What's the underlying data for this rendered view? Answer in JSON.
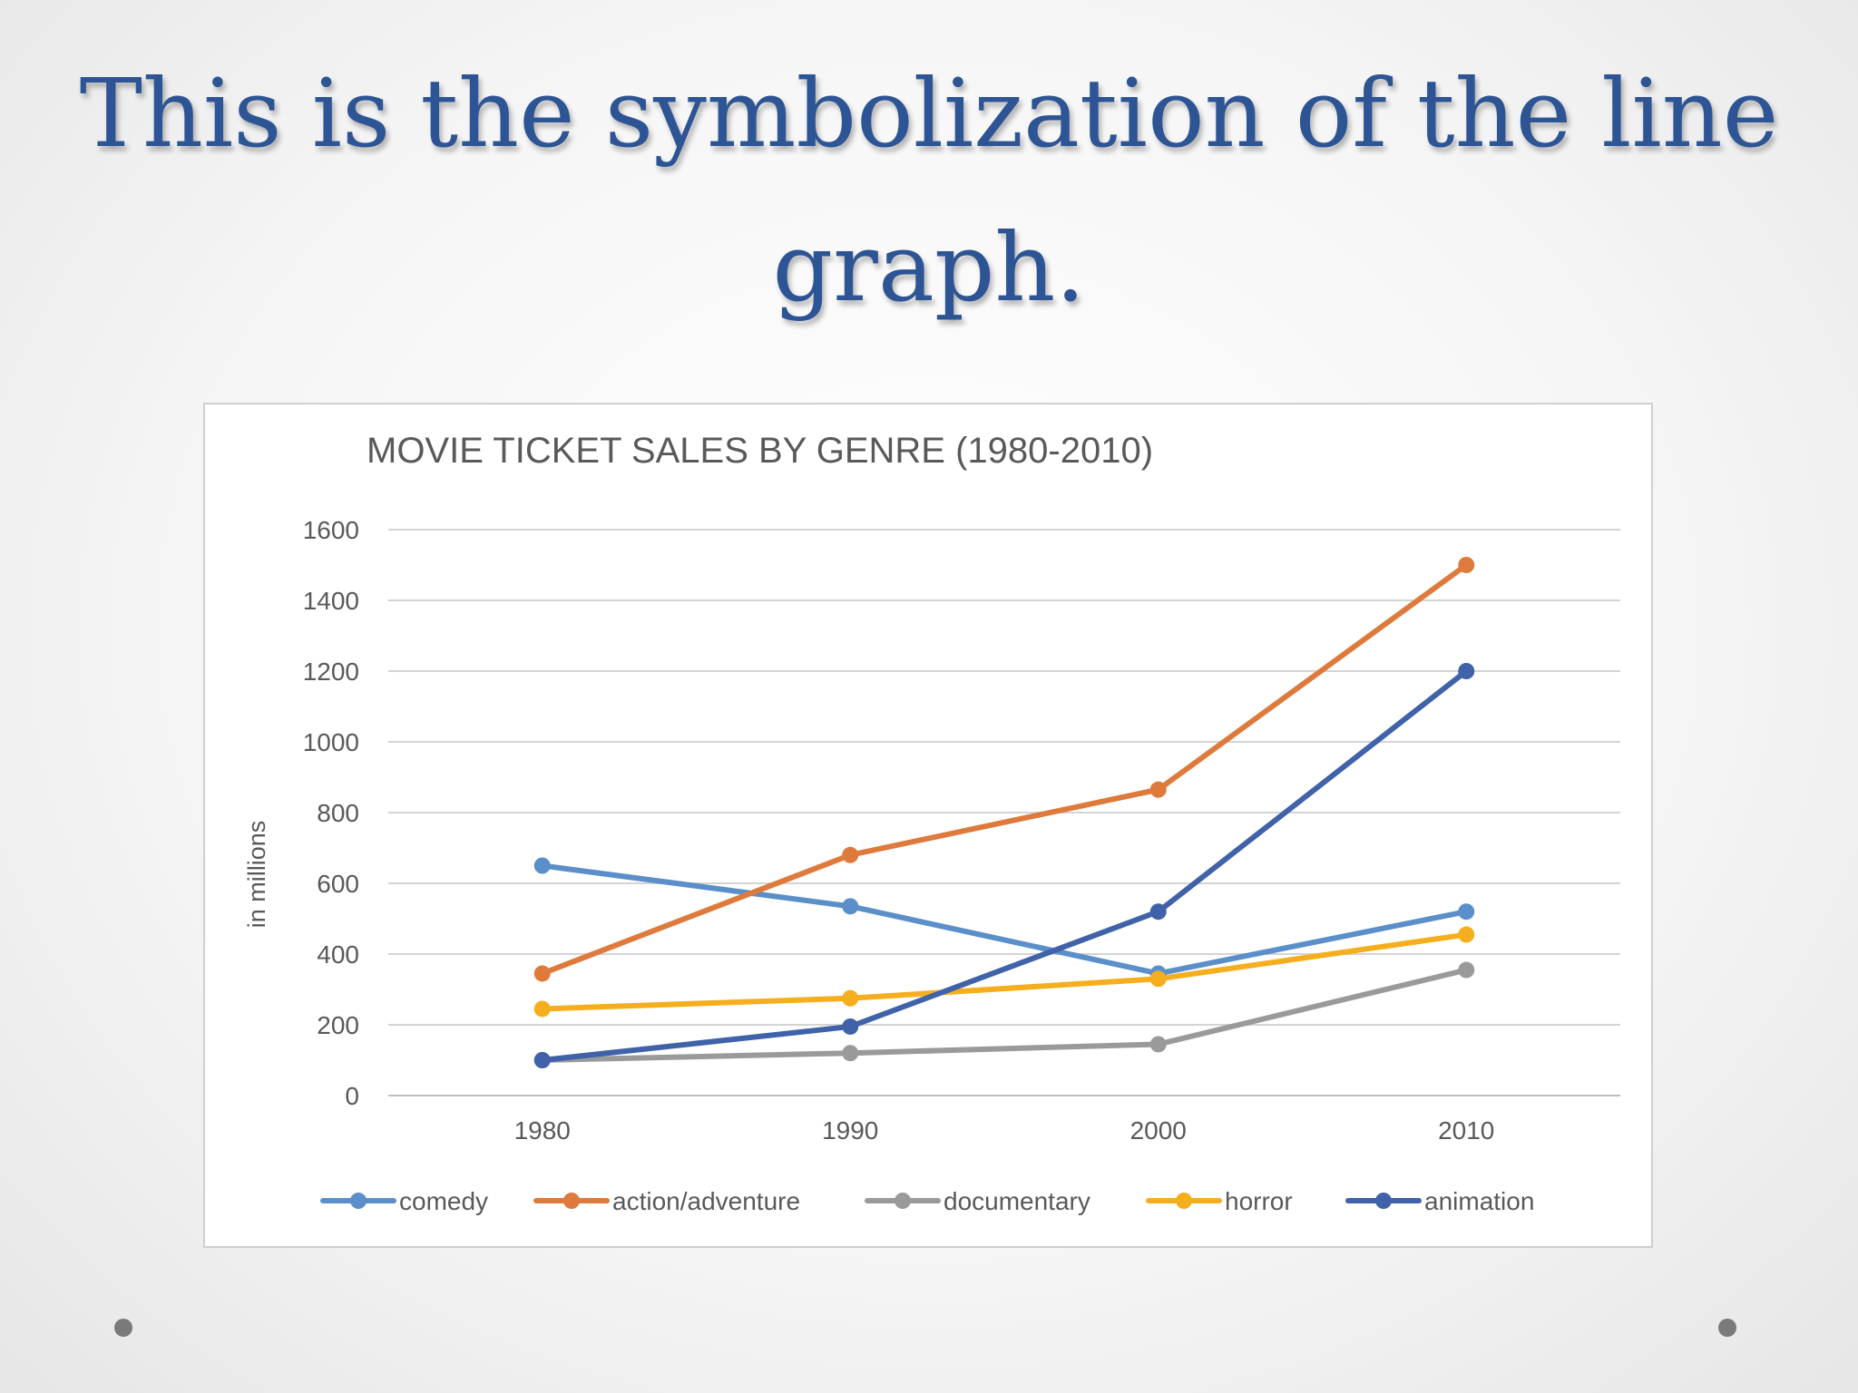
{
  "slide": {
    "title_line1": "This is the symbolization of the line",
    "title_line2": "graph."
  },
  "chart_data": {
    "type": "line",
    "title": "MOVIE TICKET SALES BY GENRE (1980-2010)",
    "xlabel": "",
    "ylabel": "in millions",
    "categories": [
      "1980",
      "1990",
      "2000",
      "2010"
    ],
    "ylim": [
      0,
      1600
    ],
    "yticks": [
      0,
      200,
      400,
      600,
      800,
      1000,
      1200,
      1400,
      1600
    ],
    "grid": true,
    "legend_position": "bottom",
    "series": [
      {
        "name": "comedy",
        "color": "#5b8fc9",
        "values": [
          650,
          535,
          345,
          520
        ]
      },
      {
        "name": "action/adventure",
        "color": "#dd7a3c",
        "values": [
          345,
          680,
          865,
          1500
        ]
      },
      {
        "name": "documentary",
        "color": "#9a9a9a",
        "values": [
          100,
          120,
          145,
          355
        ]
      },
      {
        "name": "horror",
        "color": "#f5ae1d",
        "values": [
          245,
          275,
          330,
          455
        ]
      },
      {
        "name": "animation",
        "color": "#3f62a8",
        "values": [
          100,
          195,
          520,
          1200
        ]
      }
    ]
  }
}
